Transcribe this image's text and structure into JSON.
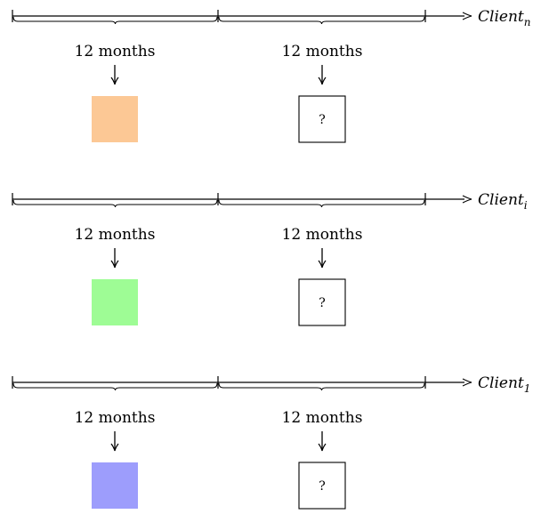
{
  "rows": [
    {
      "client_label": "Client",
      "client_subscript": "n",
      "segments": [
        {
          "label": "12 months",
          "box": "filled",
          "box_color": "#fcc895",
          "box_text": ""
        },
        {
          "label": "12 months",
          "box": "outline",
          "box_color": "#ffffff",
          "box_text": "?"
        }
      ]
    },
    {
      "client_label": "Client",
      "client_subscript": "i",
      "segments": [
        {
          "label": "12 months",
          "box": "filled",
          "box_color": "#9efc95",
          "box_text": ""
        },
        {
          "label": "12 months",
          "box": "outline",
          "box_color": "#ffffff",
          "box_text": "?"
        }
      ]
    },
    {
      "client_label": "Client",
      "client_subscript": "1",
      "segments": [
        {
          "label": "12 months",
          "box": "filled",
          "box_color": "#9d9dfc",
          "box_text": ""
        },
        {
          "label": "12 months",
          "box": "outline",
          "box_color": "#ffffff",
          "box_text": "?"
        }
      ]
    }
  ]
}
